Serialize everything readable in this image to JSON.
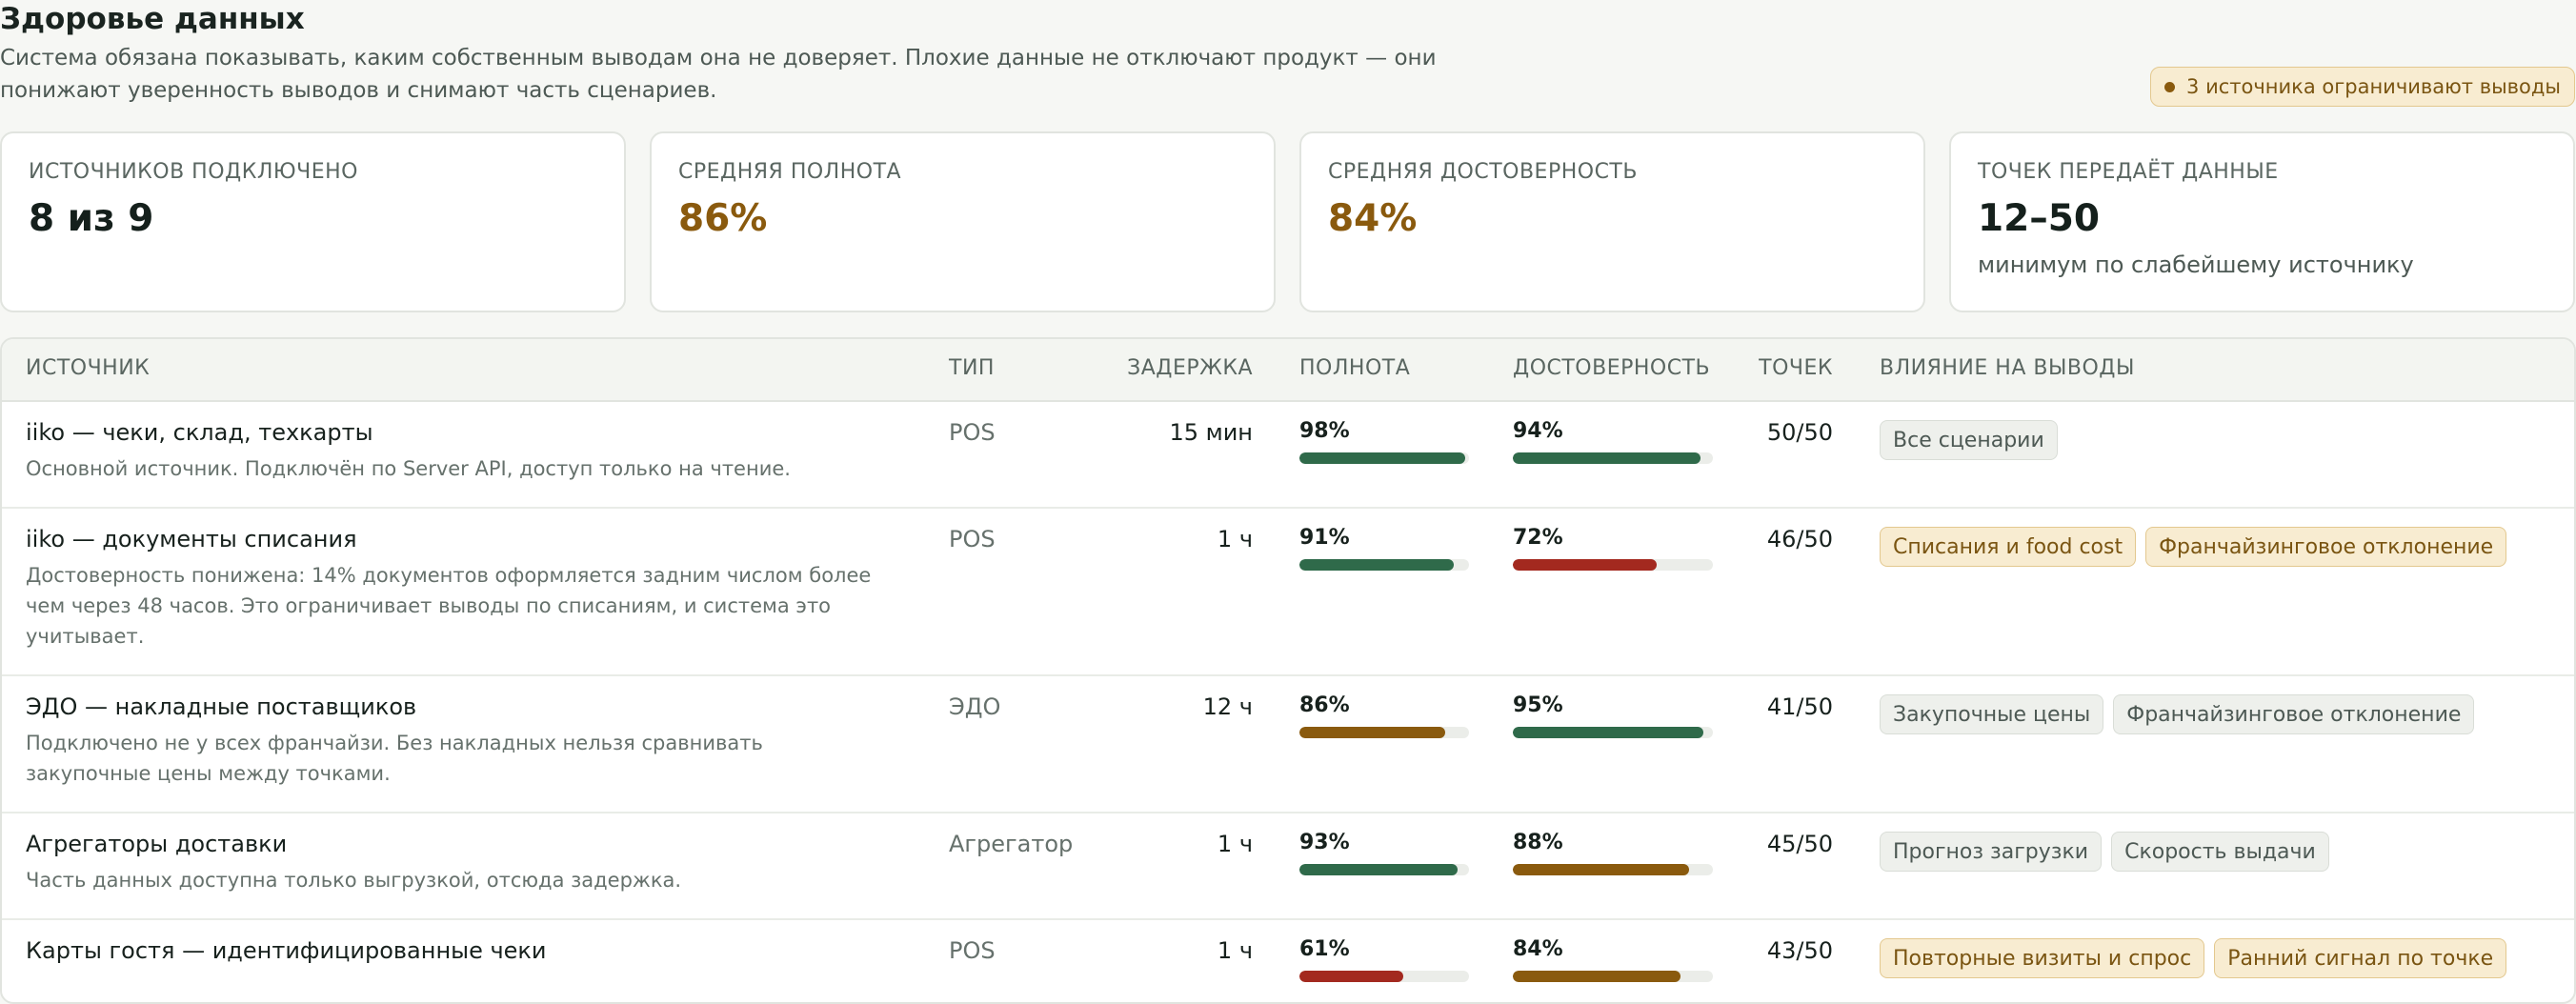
{
  "page": {
    "title": "Здоровье данных",
    "subtitle": "Система обязана показывать, каким собственным выводам она не доверяет. Плохие данные не отключают продукт — они понижают уверенность выводов и снимают часть сценариев.",
    "alert_badge": "3 источника ограничивают выводы"
  },
  "colors": {
    "good": "#2f6a4a",
    "warn": "#8a5a0e",
    "bad": "#a3291f",
    "track": "#ebede9"
  },
  "kpis": [
    {
      "label": "ИСТОЧНИКОВ ПОДКЛЮЧЕНО",
      "value": "8 из 9",
      "note": ""
    },
    {
      "label": "СРЕДНЯЯ ПОЛНОТА",
      "value": "86%",
      "note": ""
    },
    {
      "label": "СРЕДНЯЯ ДОСТОВЕРНОСТЬ",
      "value": "84%",
      "note": ""
    },
    {
      "label": "ТОЧЕК ПЕРЕДАЁТ ДАННЫЕ",
      "value": "12–50",
      "note": "минимум по слабейшему источнику"
    }
  ],
  "table": {
    "headers": {
      "source": "ИСТОЧНИК",
      "type": "ТИП",
      "delay": "ЗАДЕРЖКА",
      "completeness": "ПОЛНОТА",
      "reliability": "ДОСТОВЕРНОСТЬ",
      "points": "ТОЧЕК",
      "impact": "ВЛИЯНИЕ НА ВЫВОДЫ"
    },
    "rows": [
      {
        "name": "iiko — чеки, склад, техкарты",
        "desc": "Основной источник. Подключён по Server API, доступ только на чтение.",
        "type": "POS",
        "delay": "15 мин",
        "completeness": {
          "label": "98%",
          "value": 98,
          "status": "good"
        },
        "reliability": {
          "label": "94%",
          "value": 94,
          "status": "good"
        },
        "points": "50/50",
        "tags": [
          {
            "label": "Все сценарии",
            "kind": "neutral"
          }
        ]
      },
      {
        "name": "iiko — документы списания",
        "desc": "Достоверность понижена: 14% документов оформляется задним числом более чем через 48 часов. Это ограничивает выводы по списаниям, и система это учитывает.",
        "type": "POS",
        "delay": "1 ч",
        "completeness": {
          "label": "91%",
          "value": 91,
          "status": "good"
        },
        "reliability": {
          "label": "72%",
          "value": 72,
          "status": "bad"
        },
        "points": "46/50",
        "tags": [
          {
            "label": "Списания и food cost",
            "kind": "warn"
          },
          {
            "label": "Франчайзинговое отклонение",
            "kind": "warn"
          }
        ]
      },
      {
        "name": "ЭДО — накладные поставщиков",
        "desc": "Подключено не у всех франчайзи. Без накладных нельзя сравнивать закупочные цены между точками.",
        "type": "ЭДО",
        "delay": "12 ч",
        "completeness": {
          "label": "86%",
          "value": 86,
          "status": "warn"
        },
        "reliability": {
          "label": "95%",
          "value": 95,
          "status": "good"
        },
        "points": "41/50",
        "tags": [
          {
            "label": "Закупочные цены",
            "kind": "neutral"
          },
          {
            "label": "Франчайзинговое отклонение",
            "kind": "neutral"
          }
        ]
      },
      {
        "name": "Агрегаторы доставки",
        "desc": "Часть данных доступна только выгрузкой, отсюда задержка.",
        "type": "Агрегатор",
        "delay": "1 ч",
        "completeness": {
          "label": "93%",
          "value": 93,
          "status": "good"
        },
        "reliability": {
          "label": "88%",
          "value": 88,
          "status": "warn"
        },
        "points": "45/50",
        "tags": [
          {
            "label": "Прогноз загрузки",
            "kind": "neutral"
          },
          {
            "label": "Скорость выдачи",
            "kind": "neutral"
          }
        ]
      },
      {
        "name": "Карты гостя — идентифицированные чеки",
        "desc": "",
        "type": "POS",
        "delay": "1 ч",
        "completeness": {
          "label": "61%",
          "value": 61,
          "status": "bad"
        },
        "reliability": {
          "label": "84%",
          "value": 84,
          "status": "warn"
        },
        "points": "43/50",
        "tags": [
          {
            "label": "Повторные визиты и спрос",
            "kind": "warn"
          },
          {
            "label": "Ранний сигнал по точке",
            "kind": "warn"
          }
        ]
      }
    ]
  }
}
